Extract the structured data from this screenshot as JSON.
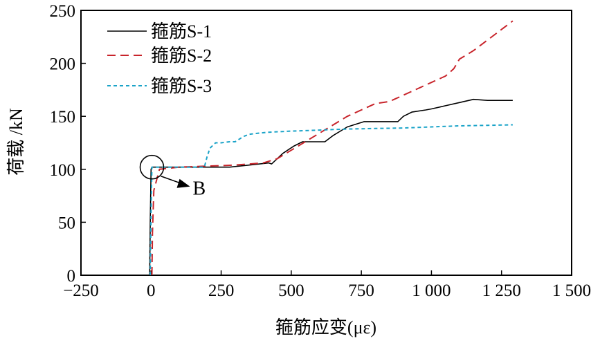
{
  "chart_data": {
    "type": "line",
    "xlabel": "箍筋应变(με)",
    "ylabel": "荷载 /kN",
    "xlim": [
      -250,
      1500
    ],
    "ylim": [
      0,
      250
    ],
    "x_ticks": [
      -250,
      0,
      250,
      500,
      750,
      1000,
      1250,
      1500
    ],
    "x_tick_labels": [
      "−250",
      "0",
      "250",
      "500",
      "750",
      "1 000",
      "1 250",
      "1 500"
    ],
    "y_ticks": [
      0,
      50,
      100,
      150,
      200,
      250
    ],
    "y_tick_labels": [
      "0",
      "50",
      "100",
      "150",
      "200",
      "250"
    ],
    "grid": false,
    "legend_position": "top-left",
    "series": [
      {
        "name": "箍筋S-1",
        "color": "#000000",
        "style": "solid",
        "x": [
          -5,
          -3,
          0,
          3,
          30,
          150,
          280,
          350,
          420,
          430,
          470,
          510,
          540,
          580,
          620,
          650,
          700,
          760,
          780,
          820,
          880,
          900,
          930,
          980,
          1000,
          1050,
          1100,
          1150,
          1200,
          1250,
          1290
        ],
        "y": [
          0,
          50,
          100,
          102,
          102,
          102,
          102,
          104,
          106,
          105,
          115,
          122,
          126,
          126,
          126,
          132,
          140,
          145,
          145,
          145,
          145,
          150,
          154,
          156,
          157,
          160,
          163,
          166,
          165,
          165,
          165
        ]
      },
      {
        "name": "箍筋S-2",
        "color": "#c8242b",
        "style": "dashed",
        "x": [
          3,
          5,
          10,
          30,
          100,
          200,
          300,
          400,
          450,
          500,
          550,
          600,
          650,
          700,
          750,
          800,
          850,
          900,
          950,
          1000,
          1050,
          1080,
          1100,
          1150,
          1200,
          1250,
          1290
        ],
        "y": [
          0,
          40,
          80,
          100,
          102,
          103,
          104,
          106,
          110,
          118,
          126,
          134,
          142,
          150,
          156,
          162,
          164,
          170,
          176,
          182,
          188,
          195,
          204,
          212,
          222,
          232,
          240
        ]
      },
      {
        "name": "箍筋S-3",
        "color": "#1aa3c8",
        "style": "dotted",
        "x": [
          -3,
          0,
          3,
          10,
          100,
          190,
          200,
          210,
          230,
          250,
          280,
          300,
          330,
          350,
          380,
          420,
          460,
          500,
          550,
          600,
          650,
          700,
          800,
          900,
          1000,
          1100,
          1200,
          1290
        ],
        "y": [
          0,
          60,
          102,
          102,
          102,
          102,
          112,
          120,
          125,
          125,
          126,
          126,
          131,
          133,
          134,
          135,
          135.5,
          136,
          136.5,
          137,
          137.5,
          138,
          138.5,
          139,
          140,
          141,
          141.5,
          142
        ]
      }
    ],
    "annotations": [
      {
        "label": "B",
        "x": 3,
        "y": 102
      }
    ]
  }
}
